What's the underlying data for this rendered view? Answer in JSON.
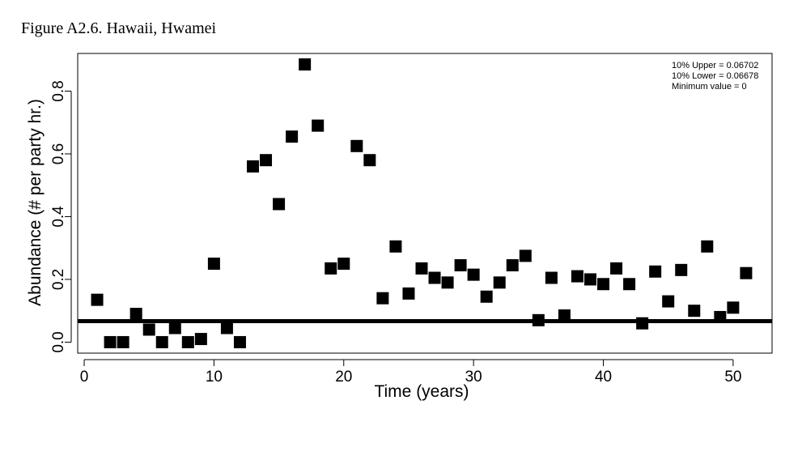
{
  "figure": {
    "title": "Figure A2.6. Hawaii, Hwamei"
  },
  "chart_data": {
    "type": "scatter",
    "xlabel": "Time (years)",
    "ylabel": "Abundance (# per party hr.)",
    "xlim": [
      -0.5,
      53
    ],
    "ylim": [
      -0.035,
      0.92
    ],
    "xticks": [
      0,
      10,
      20,
      30,
      40,
      50
    ],
    "yticks": [
      0.0,
      0.2,
      0.4,
      0.6,
      0.8
    ],
    "ytick_labels": [
      "0.0",
      "0.2",
      "0.4",
      "0.6",
      "0.8"
    ],
    "marker": "square",
    "marker_color": "#000000",
    "points": [
      {
        "x": 1,
        "y": 0.135
      },
      {
        "x": 2,
        "y": 0.0
      },
      {
        "x": 3,
        "y": 0.0
      },
      {
        "x": 4,
        "y": 0.09
      },
      {
        "x": 5,
        "y": 0.04
      },
      {
        "x": 6,
        "y": 0.0
      },
      {
        "x": 7,
        "y": 0.045
      },
      {
        "x": 8,
        "y": 0.0
      },
      {
        "x": 9,
        "y": 0.01
      },
      {
        "x": 10,
        "y": 0.25
      },
      {
        "x": 11,
        "y": 0.045
      },
      {
        "x": 12,
        "y": 0.0
      },
      {
        "x": 13,
        "y": 0.56
      },
      {
        "x": 14,
        "y": 0.58
      },
      {
        "x": 15,
        "y": 0.44
      },
      {
        "x": 16,
        "y": 0.655
      },
      {
        "x": 17,
        "y": 0.885
      },
      {
        "x": 18,
        "y": 0.69
      },
      {
        "x": 19,
        "y": 0.235
      },
      {
        "x": 20,
        "y": 0.25
      },
      {
        "x": 21,
        "y": 0.625
      },
      {
        "x": 22,
        "y": 0.58
      },
      {
        "x": 23,
        "y": 0.14
      },
      {
        "x": 24,
        "y": 0.305
      },
      {
        "x": 25,
        "y": 0.155
      },
      {
        "x": 26,
        "y": 0.235
      },
      {
        "x": 27,
        "y": 0.205
      },
      {
        "x": 28,
        "y": 0.19
      },
      {
        "x": 29,
        "y": 0.245
      },
      {
        "x": 30,
        "y": 0.215
      },
      {
        "x": 31,
        "y": 0.145
      },
      {
        "x": 32,
        "y": 0.19
      },
      {
        "x": 33,
        "y": 0.245
      },
      {
        "x": 34,
        "y": 0.275
      },
      {
        "x": 35,
        "y": 0.07
      },
      {
        "x": 36,
        "y": 0.205
      },
      {
        "x": 37,
        "y": 0.085
      },
      {
        "x": 38,
        "y": 0.21
      },
      {
        "x": 39,
        "y": 0.2
      },
      {
        "x": 40,
        "y": 0.185
      },
      {
        "x": 41,
        "y": 0.235
      },
      {
        "x": 42,
        "y": 0.185
      },
      {
        "x": 43,
        "y": 0.06
      },
      {
        "x": 44,
        "y": 0.225
      },
      {
        "x": 45,
        "y": 0.13
      },
      {
        "x": 46,
        "y": 0.23
      },
      {
        "x": 47,
        "y": 0.1
      },
      {
        "x": 48,
        "y": 0.305
      },
      {
        "x": 49,
        "y": 0.08
      },
      {
        "x": 50,
        "y": 0.11
      },
      {
        "x": 51,
        "y": 0.22
      }
    ],
    "hline": {
      "y": 0.0669,
      "color": "#000000"
    },
    "annotations": [
      {
        "label": "10% Upper =",
        "value": "0.06702"
      },
      {
        "label": "10% Lower =",
        "value": "0.06678"
      },
      {
        "label": "Minimum value =",
        "value": "0"
      }
    ],
    "annotation_placement": "top-right",
    "grid": false
  }
}
